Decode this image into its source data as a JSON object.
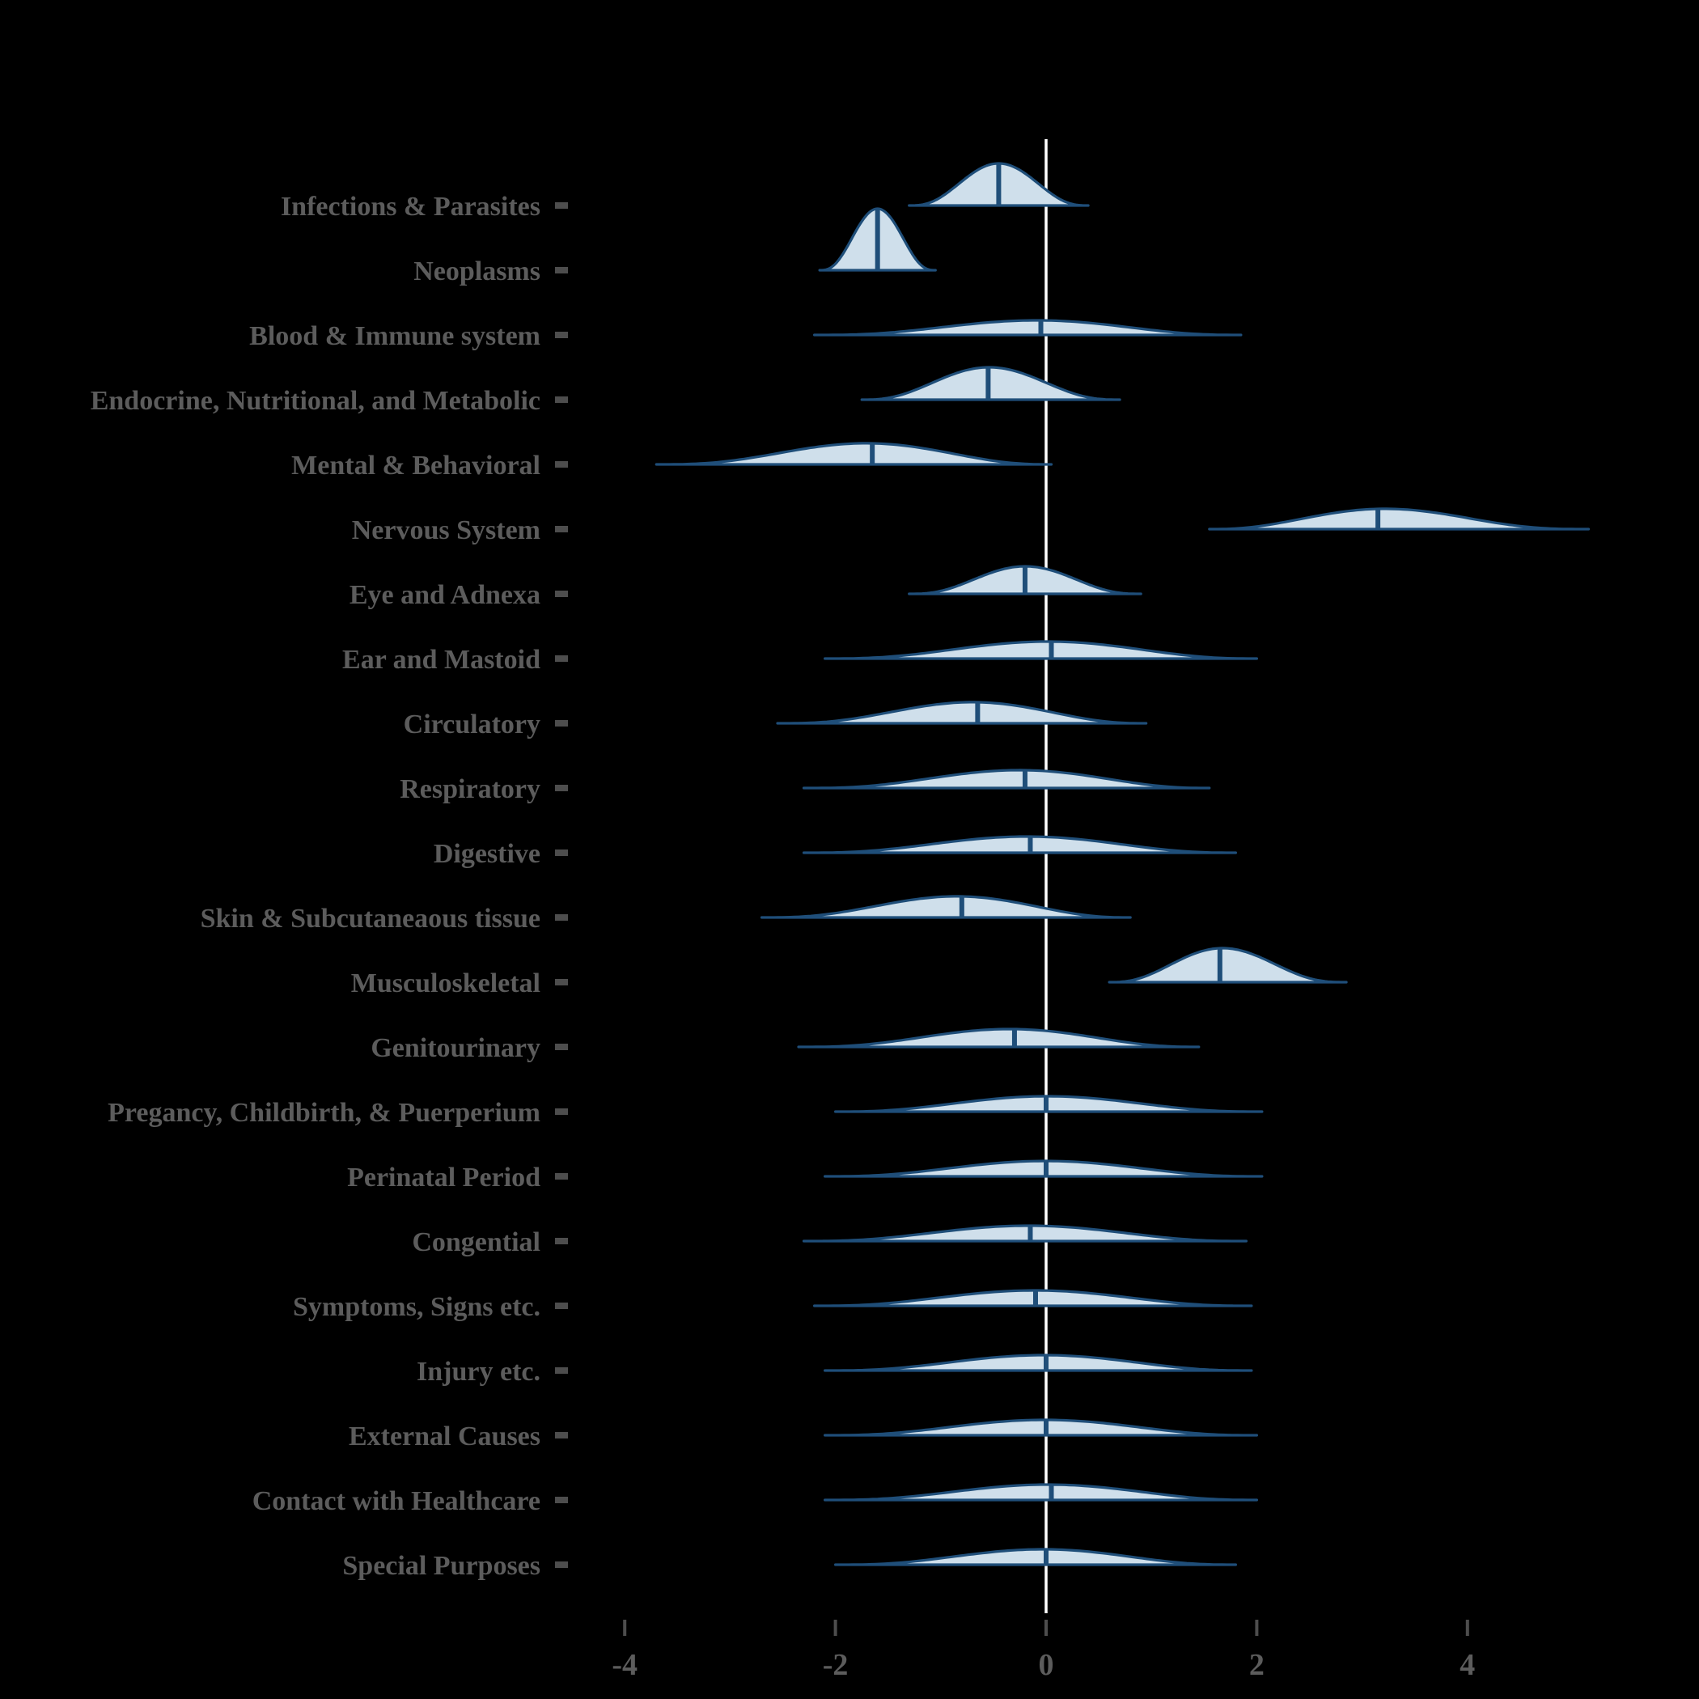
{
  "figure": {
    "background": "#000000",
    "title": ""
  },
  "chart_data": {
    "type": "ridgeline-density",
    "orientation": "horizontal",
    "title": "",
    "xlabel": "",
    "ylabel": "",
    "x_axis": {
      "range": [
        -4.8,
        5.5
      ],
      "ticks": [
        {
          "label": "-4",
          "value": -4
        },
        {
          "label": "-2",
          "value": -2
        },
        {
          "label": "0",
          "value": 0
        },
        {
          "label": "2",
          "value": 2
        },
        {
          "label": "4",
          "value": 4
        }
      ]
    },
    "zero_line_value": 0,
    "shape_sharpness": 4,
    "colors": {
      "fill": "#cfdfeb",
      "stroke": "#1f4e79",
      "median": "#1f4e79",
      "zero_line": "#ffffff",
      "text": "#5c5c5c",
      "tick": "#4d4d4d",
      "background": "#000000"
    },
    "categories": [
      {
        "label": "Infections & Parasites",
        "min": -1.3,
        "max": 0.4,
        "median": -0.45,
        "peak_height": 52
      },
      {
        "label": "Neoplasms",
        "min": -2.15,
        "max": -1.05,
        "median": -1.6,
        "peak_height": 76
      },
      {
        "label": "Blood & Immune system",
        "min": -2.2,
        "max": 1.85,
        "median": -0.05,
        "peak_height": 18
      },
      {
        "label": "Endocrine, Nutritional, and Metabolic",
        "min": -1.75,
        "max": 0.7,
        "median": -0.55,
        "peak_height": 40
      },
      {
        "label": "Mental & Behavioral",
        "min": -3.7,
        "max": 0.05,
        "median": -1.65,
        "peak_height": 26
      },
      {
        "label": "Nervous System",
        "min": 1.55,
        "max": 5.15,
        "median": 3.15,
        "peak_height": 25
      },
      {
        "label": "Eye and Adnexa",
        "min": -1.3,
        "max": 0.9,
        "median": -0.2,
        "peak_height": 34
      },
      {
        "label": "Ear and Mastoid",
        "min": -2.1,
        "max": 2.0,
        "median": 0.05,
        "peak_height": 21
      },
      {
        "label": "Circulatory",
        "min": -2.55,
        "max": 0.95,
        "median": -0.65,
        "peak_height": 26
      },
      {
        "label": "Respiratory",
        "min": -2.3,
        "max": 1.55,
        "median": -0.2,
        "peak_height": 22
      },
      {
        "label": "Digestive",
        "min": -2.3,
        "max": 1.8,
        "median": -0.15,
        "peak_height": 20
      },
      {
        "label": "Skin & Subcutaneaous tissue",
        "min": -2.7,
        "max": 0.8,
        "median": -0.8,
        "peak_height": 26
      },
      {
        "label": "Musculoskeletal",
        "min": 0.6,
        "max": 2.85,
        "median": 1.65,
        "peak_height": 42
      },
      {
        "label": "Genitourinary",
        "min": -2.35,
        "max": 1.45,
        "median": -0.3,
        "peak_height": 22
      },
      {
        "label": "Pregancy, Childbirth, & Puerperium",
        "min": -2.0,
        "max": 2.05,
        "median": 0.0,
        "peak_height": 19
      },
      {
        "label": "Perinatal Period",
        "min": -2.1,
        "max": 2.05,
        "median": 0.0,
        "peak_height": 19
      },
      {
        "label": "Congential",
        "min": -2.3,
        "max": 1.9,
        "median": -0.15,
        "peak_height": 19
      },
      {
        "label": "Symptoms, Signs etc.",
        "min": -2.2,
        "max": 1.95,
        "median": -0.1,
        "peak_height": 19
      },
      {
        "label": "Injury etc.",
        "min": -2.1,
        "max": 1.95,
        "median": 0.0,
        "peak_height": 19
      },
      {
        "label": "External Causes",
        "min": -2.1,
        "max": 2.0,
        "median": 0.0,
        "peak_height": 19
      },
      {
        "label": "Contact with Healthcare",
        "min": -2.1,
        "max": 2.0,
        "median": 0.05,
        "peak_height": 19
      },
      {
        "label": "Special Purposes",
        "min": -2.0,
        "max": 1.8,
        "median": 0.0,
        "peak_height": 19
      }
    ]
  }
}
